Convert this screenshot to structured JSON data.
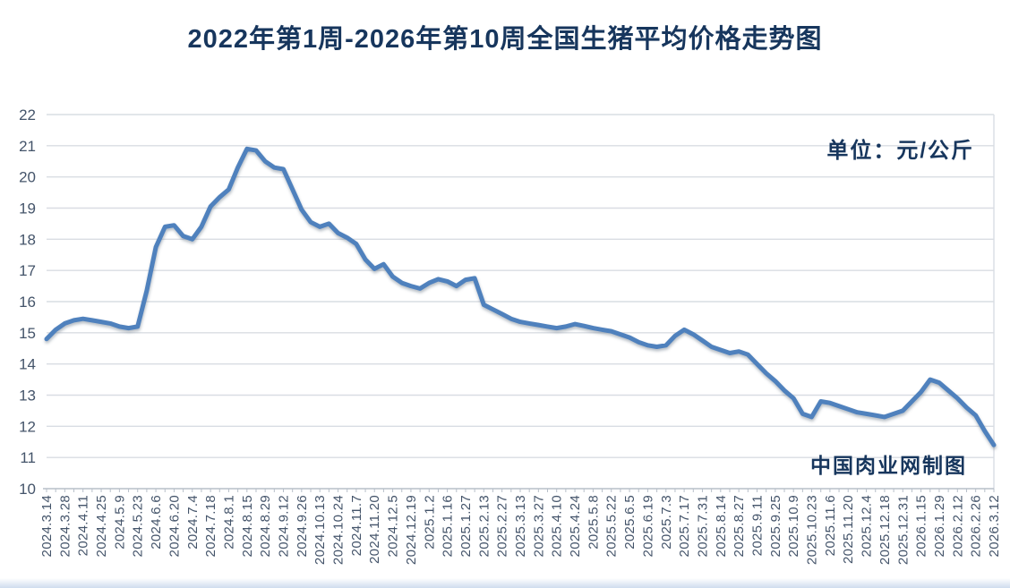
{
  "title": "2022年第1周-2026年第10周全国生猪平均价格走势图",
  "unit_label": "单位：元/公斤",
  "watermark": "中国肉业网制图",
  "colors": {
    "line": "#4f81bd",
    "title_text": "#17365d",
    "axis_text": "#44546a",
    "gridline": "#d9dde3",
    "axis_line": "#b7bfc9"
  },
  "chart_data": {
    "type": "line",
    "title": "2022年第1周-2026年第10周全国生猪平均价格走势图",
    "ylabel": "元/公斤",
    "ylim": [
      10,
      22
    ],
    "y_tick_step": 1,
    "y_ticks": [
      10,
      11,
      12,
      13,
      14,
      15,
      16,
      17,
      18,
      19,
      20,
      21,
      22
    ],
    "grid": "horizontal",
    "legend_position": "none",
    "x_label_every_n_points": 2,
    "x_labels": [
      "2024.3.14",
      "2024.3.28",
      "2024.4.11",
      "2024.4.25",
      "2024.5.9",
      "2024.5.23",
      "2024.6.6",
      "2024.6.20",
      "2024.7.4",
      "2024.7.18",
      "2024.8.1",
      "2024.8.15",
      "2024.8.29",
      "2024.9.12",
      "2024.9.26",
      "2024.10.13",
      "2024.10.24",
      "2024.11.7",
      "2024.11.20",
      "2024.12.5",
      "2024.12.19",
      "2025.1.2",
      "2025.1.16",
      "2025.1.27",
      "2025.2.13",
      "2025.2.27",
      "2025.3.13",
      "2025.3.27",
      "2025.4.10",
      "2025.4.24",
      "2025.5.8",
      "2025.5.22",
      "2025.6.5",
      "2025.6.19",
      "2025.7.3",
      "2025.7.17",
      "2025.7.31",
      "2025.8.14",
      "2025.8.27",
      "2025.9.11",
      "2025.9.25",
      "2025.10.9",
      "2025.10.23",
      "2025.11.6",
      "2025.11.20",
      "2025.12.4",
      "2025.12.18",
      "2025.12.31",
      "2026.1.15",
      "2026.1.29",
      "2026.2.12",
      "2026.2.26",
      "2026.3.12"
    ],
    "series": [
      {
        "name": "全国生猪平均价格",
        "values": [
          14.8,
          15.1,
          15.3,
          15.4,
          15.45,
          15.4,
          15.35,
          15.3,
          15.2,
          15.15,
          15.2,
          16.35,
          17.75,
          18.4,
          18.45,
          18.1,
          18.0,
          18.4,
          19.05,
          19.35,
          19.6,
          20.3,
          20.9,
          20.85,
          20.5,
          20.3,
          20.25,
          19.6,
          18.95,
          18.55,
          18.4,
          18.5,
          18.2,
          18.05,
          17.85,
          17.35,
          17.05,
          17.2,
          16.8,
          16.6,
          16.5,
          16.42,
          16.6,
          16.72,
          16.65,
          16.5,
          16.7,
          16.75,
          15.9,
          15.75,
          15.6,
          15.45,
          15.35,
          15.3,
          15.25,
          15.2,
          15.15,
          15.2,
          15.28,
          15.22,
          15.15,
          15.1,
          15.05,
          14.95,
          14.85,
          14.7,
          14.6,
          14.55,
          14.6,
          14.9,
          15.1,
          14.95,
          14.75,
          14.55,
          14.45,
          14.35,
          14.4,
          14.3,
          14.0,
          13.7,
          13.45,
          13.15,
          12.9,
          12.4,
          12.3,
          12.8,
          12.75,
          12.65,
          12.55,
          12.45,
          12.4,
          12.35,
          12.3,
          12.4,
          12.5,
          12.8,
          13.1,
          13.5,
          13.4,
          13.15,
          12.9,
          12.6,
          12.35,
          11.85,
          11.4
        ]
      }
    ]
  }
}
